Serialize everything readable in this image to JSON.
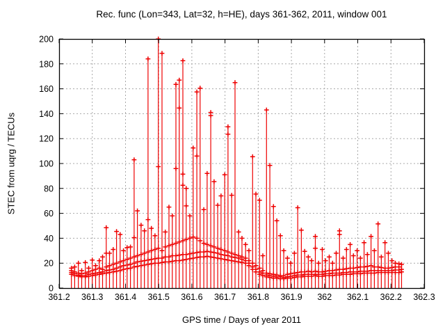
{
  "chart_data": {
    "type": "impulses+points",
    "title": "Rec. func (Lon=343, Lat=32, h=HE), days 361-362, 2011, window 001",
    "xlabel": "GPS time / Days of year 2011",
    "ylabel": "STEC from uqrg / TECUs",
    "xlim": [
      361.2,
      362.3
    ],
    "ylim": [
      0,
      200
    ],
    "xticks": [
      361.2,
      361.3,
      361.4,
      361.5,
      361.6,
      361.7,
      361.8,
      361.9,
      362.0,
      362.1,
      362.2,
      362.3
    ],
    "xtick_labels": [
      "361.2",
      "361.3",
      "361.4",
      "361.5",
      "361.6",
      "361.7",
      "361.8",
      "361.9",
      "362",
      "362.1",
      "362.2",
      "362.3"
    ],
    "yticks": [
      0,
      20,
      40,
      60,
      80,
      100,
      120,
      140,
      160,
      180,
      200
    ],
    "grid": true,
    "legend": "none",
    "series_color": "#ee0000",
    "frame_color": "#000000",
    "grid_color": "#a8a8a8",
    "background": "#ffffff",
    "groups": [
      [
        361.237,
        [
          11,
          12.5,
          14,
          16
        ]
      ],
      [
        361.247,
        [
          10,
          11.5,
          13,
          17
        ]
      ],
      [
        361.258,
        [
          9.5,
          10.5,
          12,
          20
        ]
      ],
      [
        361.268,
        [
          9,
          10,
          11.5,
          14
        ]
      ],
      [
        361.279,
        [
          9,
          10,
          12,
          20.5
        ]
      ],
      [
        361.289,
        [
          9.5,
          11,
          13,
          16
        ]
      ],
      [
        361.3,
        [
          10,
          11.5,
          14,
          22.5
        ]
      ],
      [
        361.31,
        [
          10.5,
          12,
          15,
          18
        ]
      ],
      [
        361.321,
        [
          11,
          12.5,
          16,
          22
        ]
      ],
      [
        361.331,
        [
          11.5,
          13,
          15,
          25
        ]
      ],
      [
        361.342,
        [
          12,
          14,
          17,
          28,
          48.5
        ]
      ],
      [
        361.352,
        [
          12.5,
          14.5,
          18,
          28
        ]
      ],
      [
        361.363,
        [
          13,
          15,
          19,
          31
        ]
      ],
      [
        361.373,
        [
          13.5,
          16,
          20,
          45.5
        ]
      ],
      [
        361.384,
        [
          14,
          17,
          21,
          43
        ]
      ],
      [
        361.394,
        [
          15,
          18,
          22,
          30
        ]
      ],
      [
        361.405,
        [
          15.5,
          18.5,
          23,
          32.5
        ]
      ],
      [
        361.415,
        [
          16,
          19,
          24,
          33
        ]
      ],
      [
        361.426,
        [
          17,
          20,
          25,
          40.5,
          103
        ]
      ],
      [
        361.436,
        [
          17.5,
          21,
          26,
          62
        ]
      ],
      [
        361.447,
        [
          18,
          21.5,
          27,
          50.5
        ]
      ],
      [
        361.457,
        [
          18.5,
          22,
          28,
          46
        ]
      ],
      [
        361.468,
        [
          19,
          22.5,
          29,
          55,
          184
        ]
      ],
      [
        361.478,
        [
          19.5,
          23,
          30,
          48
        ]
      ],
      [
        361.489,
        [
          20,
          23.5,
          31,
          42
        ]
      ],
      [
        361.499,
        [
          20,
          24,
          32,
          97.5,
          200
        ]
      ],
      [
        361.51,
        [
          20.5,
          24,
          30,
          188.5
        ]
      ],
      [
        361.52,
        [
          21,
          25,
          33,
          45
        ]
      ],
      [
        361.531,
        [
          21,
          25,
          34,
          65
        ]
      ],
      [
        361.541,
        [
          21.5,
          26,
          35,
          58
        ]
      ],
      [
        361.552,
        [
          22,
          26,
          36,
          96,
          163.5
        ]
      ],
      [
        361.562,
        [
          22,
          26.5,
          37,
          144.5,
          167
        ]
      ],
      [
        361.573,
        [
          22.5,
          27,
          38,
          82.5,
          91.5,
          182.5
        ]
      ],
      [
        361.583,
        [
          23,
          27,
          39,
          66,
          80
        ]
      ],
      [
        361.594,
        [
          23.5,
          27.5,
          40,
          58
        ]
      ],
      [
        361.604,
        [
          24,
          28,
          41,
          112.5
        ]
      ],
      [
        361.615,
        [
          24.5,
          28.5,
          40,
          106,
          157.5
        ]
      ],
      [
        361.625,
        [
          25,
          29,
          38,
          160.5
        ]
      ],
      [
        361.636,
        [
          25,
          29,
          36,
          63
        ]
      ],
      [
        361.646,
        [
          25.5,
          29.5,
          35,
          92
        ]
      ],
      [
        361.657,
        [
          25,
          29,
          34,
          138.5,
          141
        ]
      ],
      [
        361.667,
        [
          24.5,
          28.5,
          33,
          85.5
        ]
      ],
      [
        361.678,
        [
          24,
          28,
          32,
          66.5
        ]
      ],
      [
        361.688,
        [
          23.5,
          27,
          31,
          74
        ]
      ],
      [
        361.699,
        [
          23,
          26.5,
          30,
          91
        ]
      ],
      [
        361.709,
        [
          22.5,
          26,
          29,
          123.5,
          129.5
        ]
      ],
      [
        361.72,
        [
          22,
          25,
          28,
          74.5
        ]
      ],
      [
        361.73,
        [
          21.5,
          24.5,
          27,
          165
        ]
      ],
      [
        361.741,
        [
          21,
          24,
          26,
          45
        ]
      ],
      [
        361.751,
        [
          20.5,
          23,
          25,
          40
        ]
      ],
      [
        361.762,
        [
          20,
          22,
          24,
          35
        ]
      ],
      [
        361.772,
        [
          18,
          20,
          22,
          30
        ]
      ],
      [
        361.783,
        [
          15,
          17,
          20,
          105.5
        ]
      ],
      [
        361.793,
        [
          13,
          15,
          18,
          75.5
        ]
      ],
      [
        361.804,
        [
          11,
          13,
          16,
          70.5
        ]
      ],
      [
        361.814,
        [
          10,
          12,
          14,
          26
        ]
      ],
      [
        361.825,
        [
          9,
          10.5,
          12,
          143
        ]
      ],
      [
        361.835,
        [
          8.5,
          10,
          11.5,
          98.5
        ]
      ],
      [
        361.846,
        [
          8,
          9.5,
          11,
          65.5
        ]
      ],
      [
        361.856,
        [
          8,
          9,
          10.5,
          54
        ]
      ],
      [
        361.867,
        [
          7.5,
          9,
          10,
          42
        ]
      ],
      [
        361.877,
        [
          7.5,
          8.5,
          10,
          30
        ]
      ],
      [
        361.888,
        [
          8,
          9,
          11,
          24
        ]
      ],
      [
        361.898,
        [
          8,
          9.5,
          11.5,
          20
        ]
      ],
      [
        361.909,
        [
          8.5,
          10,
          12,
          28
        ]
      ],
      [
        361.919,
        [
          9,
          10.5,
          12.5,
          64.5
        ]
      ],
      [
        361.93,
        [
          9,
          10.5,
          13,
          46.5
        ]
      ],
      [
        361.94,
        [
          9.5,
          11,
          13,
          29.5
        ]
      ],
      [
        361.951,
        [
          9.5,
          11,
          13.5,
          25
        ]
      ],
      [
        361.961,
        [
          9.5,
          11,
          13,
          22
        ]
      ],
      [
        361.972,
        [
          10,
          11,
          13.5,
          32,
          41.5
        ]
      ],
      [
        361.982,
        [
          9.5,
          11,
          13,
          20
        ]
      ],
      [
        361.993,
        [
          9.5,
          11,
          13,
          31
        ]
      ],
      [
        362.003,
        [
          10,
          11.5,
          13.5,
          22
        ]
      ],
      [
        362.014,
        [
          10,
          11.5,
          14,
          25
        ]
      ],
      [
        362.024,
        [
          10,
          12,
          14,
          20
        ]
      ],
      [
        362.035,
        [
          10.5,
          12,
          14.5,
          28
        ]
      ],
      [
        362.045,
        [
          10.5,
          12,
          15,
          43,
          46
        ]
      ],
      [
        362.056,
        [
          11,
          12.5,
          15,
          24
        ]
      ],
      [
        362.066,
        [
          11,
          12.5,
          15.5,
          31
        ]
      ],
      [
        362.077,
        [
          11,
          13,
          16,
          35
        ]
      ],
      [
        362.087,
        [
          11.5,
          13,
          16,
          26
        ]
      ],
      [
        362.098,
        [
          11.5,
          13,
          16.5,
          30
        ]
      ],
      [
        362.108,
        [
          11.5,
          13.5,
          17,
          24
        ]
      ],
      [
        362.119,
        [
          12,
          13.5,
          17,
          36.5
        ]
      ],
      [
        362.129,
        [
          12,
          13.5,
          17.5,
          27
        ]
      ],
      [
        362.14,
        [
          12,
          14,
          18,
          41.5
        ]
      ],
      [
        362.15,
        [
          12,
          14,
          17,
          30
        ]
      ],
      [
        362.161,
        [
          12.5,
          14,
          17,
          51.5
        ]
      ],
      [
        362.171,
        [
          12.5,
          14,
          16.5,
          25
        ]
      ],
      [
        362.182,
        [
          12.5,
          14,
          16,
          36.5
        ]
      ],
      [
        362.192,
        [
          12.5,
          14,
          16,
          28
        ]
      ],
      [
        362.203,
        [
          12.5,
          14,
          16.5,
          22
        ]
      ],
      [
        362.213,
        [
          12.5,
          14.5,
          17,
          20
        ]
      ],
      [
        362.224,
        [
          12.5,
          14.5,
          17,
          19.5
        ]
      ],
      [
        362.232,
        [
          13,
          15,
          19
        ]
      ]
    ]
  }
}
